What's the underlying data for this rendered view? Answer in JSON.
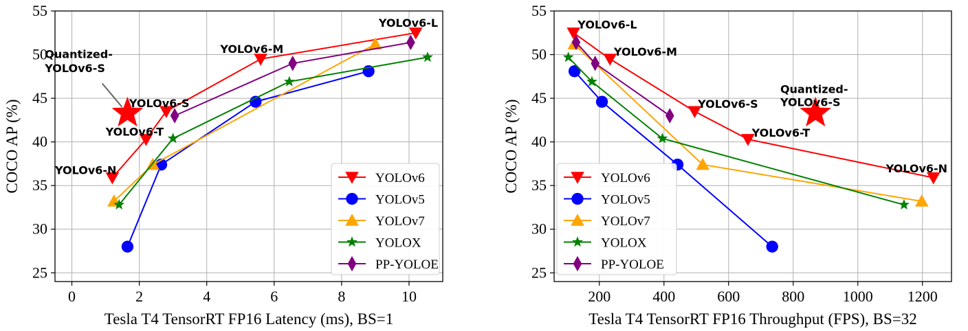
{
  "chart_data": [
    {
      "type": "line",
      "xlabel": "Tesla T4 TensorRT FP16 Latency (ms), BS=1",
      "ylabel": "COCO AP (%)",
      "xlim": [
        -0.5,
        11
      ],
      "ylim": [
        24,
        55
      ],
      "xticks": [
        0,
        2,
        4,
        6,
        8,
        10
      ],
      "yticks": [
        25,
        30,
        35,
        40,
        45,
        50,
        55
      ],
      "grid": true,
      "legend_position": "bottom-right",
      "series": [
        {
          "name": "YOLOv6",
          "color": "#ff0000",
          "marker": "triangle-down",
          "points": [
            [
              1.2,
              35.9
            ],
            [
              2.2,
              40.3
            ],
            [
              2.8,
              43.5
            ],
            [
              5.6,
              49.5
            ],
            [
              10.2,
              52.5
            ]
          ]
        },
        {
          "name": "YOLOv5",
          "color": "#0000ff",
          "marker": "circle",
          "points": [
            [
              1.65,
              28.0
            ],
            [
              2.65,
              37.4
            ],
            [
              5.45,
              44.6
            ],
            [
              8.8,
              48.1
            ]
          ]
        },
        {
          "name": "YOLOv7",
          "color": "#ffa500",
          "marker": "triangle-up",
          "points": [
            [
              1.25,
              33.2
            ],
            [
              2.4,
              37.4
            ],
            [
              9.0,
              51.2
            ]
          ]
        },
        {
          "name": "YOLOX",
          "color": "#008000",
          "marker": "star",
          "points": [
            [
              1.4,
              32.8
            ],
            [
              3.0,
              40.4
            ],
            [
              6.45,
              46.9
            ],
            [
              10.55,
              49.7
            ]
          ]
        },
        {
          "name": "PP-YOLOE",
          "color": "#800080",
          "marker": "diamond",
          "points": [
            [
              3.05,
              43.0
            ],
            [
              6.55,
              49.0
            ],
            [
              10.05,
              51.4
            ]
          ]
        }
      ],
      "highlight": {
        "name": "Quantized-YOLOv6-S",
        "point": [
          1.65,
          43.3
        ],
        "color": "#ff0000",
        "marker": "star"
      },
      "annotations": [
        {
          "text": "YOLOv6-L",
          "x": 9.1,
          "y": 53.2
        },
        {
          "text": "YOLOv6-M",
          "x": 4.4,
          "y": 50.2
        },
        {
          "text": "YOLOv6-S",
          "x": 1.7,
          "y": 44.0
        },
        {
          "text": "YOLOv6-T",
          "x": 1.0,
          "y": 40.7
        },
        {
          "text": "YOLOv6-N",
          "x": -0.5,
          "y": 36.3
        },
        {
          "text": "Quantized-",
          "x": -0.8,
          "y": 49.6
        },
        {
          "text": "YOLOv6-S",
          "x": -0.8,
          "y": 48.0
        }
      ]
    },
    {
      "type": "line",
      "xlabel": "Tesla T4 TensorRT FP16 Throughput (FPS), BS=32",
      "ylabel": "COCO AP (%)",
      "xlim": [
        60,
        1290
      ],
      "ylim": [
        24,
        55
      ],
      "xticks": [
        200,
        400,
        600,
        800,
        1000,
        1200
      ],
      "yticks": [
        25,
        30,
        35,
        40,
        45,
        50,
        55
      ],
      "grid": true,
      "legend_position": "bottom-left",
      "series": [
        {
          "name": "YOLOv6",
          "color": "#ff0000",
          "marker": "triangle-down",
          "points": [
            [
              120,
              52.5
            ],
            [
              233,
              49.5
            ],
            [
              495,
              43.5
            ],
            [
              660,
              40.3
            ],
            [
              1234,
              35.9
            ]
          ]
        },
        {
          "name": "YOLOv5",
          "color": "#0000ff",
          "marker": "circle",
          "points": [
            [
              123,
              48.1
            ],
            [
              208,
              44.6
            ],
            [
              442,
              37.4
            ],
            [
              735,
              28.0
            ]
          ]
        },
        {
          "name": "YOLOv7",
          "color": "#ffa500",
          "marker": "triangle-up",
          "points": [
            [
              122,
              51.2
            ],
            [
              520,
              37.4
            ],
            [
              1198,
              33.2
            ]
          ]
        },
        {
          "name": "YOLOX",
          "color": "#008000",
          "marker": "star",
          "points": [
            [
              104,
              49.7
            ],
            [
              177,
              46.9
            ],
            [
              395,
              40.4
            ],
            [
              1143,
              32.8
            ]
          ]
        },
        {
          "name": "PP-YOLOE",
          "color": "#800080",
          "marker": "diamond",
          "points": [
            [
              128,
              51.4
            ],
            [
              187,
              49.0
            ],
            [
              418,
              43.0
            ]
          ]
        }
      ],
      "highlight": {
        "name": "Quantized-YOLOv6-S",
        "point": [
          869,
          43.3
        ],
        "color": "#ff0000",
        "marker": "star"
      },
      "annotations": [
        {
          "text": "YOLOv6-L",
          "x": 133,
          "y": 53.0
        },
        {
          "text": "YOLOv6-M",
          "x": 245,
          "y": 49.9
        },
        {
          "text": "YOLOv6-S",
          "x": 505,
          "y": 43.9
        },
        {
          "text": "YOLOv6-T",
          "x": 672,
          "y": 40.6
        },
        {
          "text": "YOLOv6-N",
          "x": 1087,
          "y": 36.5
        },
        {
          "text": "Quantized-",
          "x": 760,
          "y": 45.6
        },
        {
          "text": "YOLOv6-S",
          "x": 760,
          "y": 44.1
        }
      ]
    }
  ]
}
